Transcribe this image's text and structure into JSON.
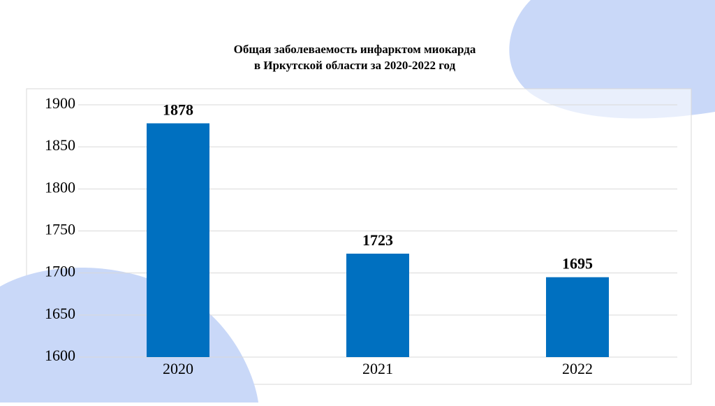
{
  "chart_data": {
    "type": "bar",
    "title": [
      "Общая заболеваемость инфарктом миокарда",
      "в Иркутской области за 2020-2022 год"
    ],
    "categories": [
      "2020",
      "2021",
      "2022"
    ],
    "values": [
      1878,
      1723,
      1695
    ],
    "color": "#0070c0",
    "ylim": [
      1600,
      1900
    ],
    "yticks": [
      1600,
      1650,
      1700,
      1750,
      1800,
      1850,
      1900
    ],
    "grid": true
  }
}
